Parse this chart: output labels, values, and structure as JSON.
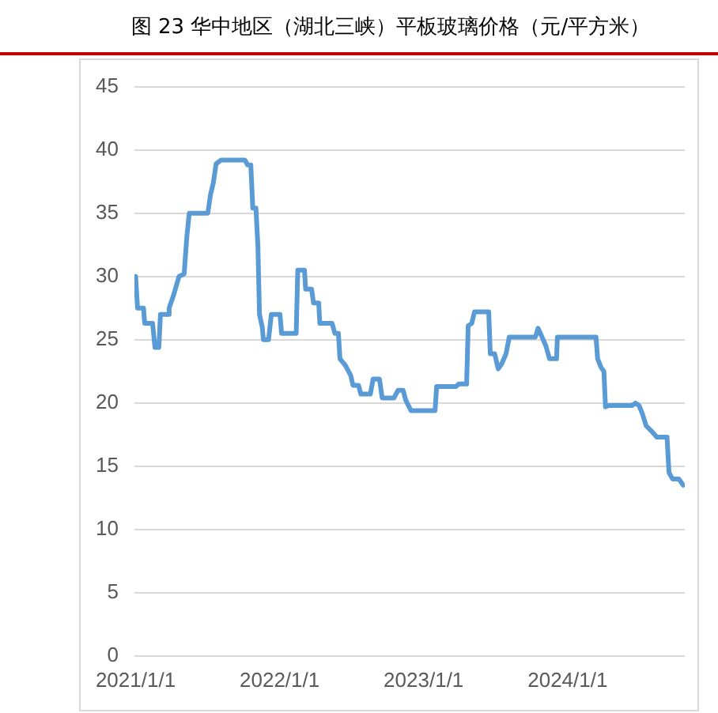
{
  "chart_data": {
    "type": "line",
    "title": "图 23 华中地区（湖北三峡）平板玻璃价格（元/平方米）",
    "x": [
      "2021-01-01",
      "2021-01-06",
      "2021-01-21",
      "2021-01-24",
      "2021-02-13",
      "2021-02-19",
      "2021-03-01",
      "2021-03-05",
      "2021-03-25",
      "2021-03-27",
      "2021-04-07",
      "2021-04-21",
      "2021-05-04",
      "2021-05-11",
      "2021-05-17",
      "2021-07-03",
      "2021-07-10",
      "2021-07-17",
      "2021-07-24",
      "2021-08-06",
      "2021-10-05",
      "2021-10-12",
      "2021-10-20",
      "2021-10-25",
      "2021-11-02",
      "2021-11-07",
      "2021-11-11",
      "2021-11-18",
      "2021-11-21",
      "2021-12-04",
      "2021-12-11",
      "2022-01-02",
      "2022-01-06",
      "2022-02-12",
      "2022-02-16",
      "2022-03-05",
      "2022-03-08",
      "2022-03-23",
      "2022-03-28",
      "2022-04-10",
      "2022-04-13",
      "2022-05-14",
      "2022-05-21",
      "2022-05-30",
      "2022-06-03",
      "2022-06-16",
      "2022-06-30",
      "2022-07-06",
      "2022-07-20",
      "2022-07-26",
      "2022-08-19",
      "2022-08-26",
      "2022-09-11",
      "2022-09-18",
      "2022-10-18",
      "2022-10-28",
      "2022-11-10",
      "2022-11-17",
      "2022-11-30",
      "2023-01-30",
      "2023-02-03",
      "2023-03-24",
      "2023-03-31",
      "2023-04-20",
      "2023-04-24",
      "2023-05-03",
      "2023-05-10",
      "2023-06-15",
      "2023-06-19",
      "2023-06-30",
      "2023-07-09",
      "2023-07-18",
      "2023-07-29",
      "2023-08-06",
      "2023-10-11",
      "2023-10-18",
      "2023-10-24",
      "2023-11-07",
      "2023-11-16",
      "2023-12-04",
      "2023-12-06",
      "2024-03-13",
      "2024-03-17",
      "2024-03-26",
      "2024-04-02",
      "2024-04-06",
      "2024-04-15",
      "2024-06-12",
      "2024-06-21",
      "2024-06-30",
      "2024-07-08",
      "2024-07-18",
      "2024-07-31",
      "2024-08-14",
      "2024-09-09",
      "2024-09-14",
      "2024-09-23",
      "2024-10-09",
      "2024-10-20"
    ],
    "series": [
      {
        "color": "#5b9bd5",
        "values": [
          30.0,
          27.5,
          27.5,
          26.3,
          26.3,
          24.4,
          24.4,
          27.0,
          27.0,
          27.5,
          28.5,
          30.0,
          30.2,
          33.2,
          35.0,
          35.0,
          36.5,
          37.4,
          38.9,
          39.2,
          39.2,
          38.8,
          38.8,
          35.4,
          35.4,
          32.4,
          27.0,
          26.0,
          25.0,
          25.0,
          27.0,
          27.0,
          25.5,
          25.5,
          30.5,
          30.5,
          29.0,
          29.0,
          27.9,
          27.9,
          26.3,
          26.3,
          25.5,
          25.5,
          23.5,
          23.0,
          22.2,
          21.4,
          21.4,
          20.7,
          20.7,
          21.9,
          21.9,
          20.4,
          20.4,
          21.0,
          21.0,
          20.2,
          19.4,
          19.4,
          21.3,
          21.3,
          21.5,
          21.5,
          26.1,
          26.3,
          27.2,
          27.2,
          23.9,
          23.9,
          22.7,
          23.1,
          23.9,
          25.2,
          25.2,
          25.9,
          25.5,
          24.5,
          23.5,
          23.5,
          25.2,
          25.2,
          23.5,
          22.8,
          22.5,
          19.7,
          19.8,
          19.8,
          20.0,
          19.8,
          19.2,
          18.2,
          17.8,
          17.3,
          17.3,
          14.5,
          14.0,
          14.0,
          13.5
        ]
      }
    ],
    "xlim": [
      "2020-12-29",
      "2024-10-24"
    ],
    "xticks": [
      {
        "value": "2021-01-01",
        "label": "2021/1/1"
      },
      {
        "value": "2022-01-01",
        "label": "2022/1/1"
      },
      {
        "value": "2023-01-01",
        "label": "2023/1/1"
      },
      {
        "value": "2024-01-01",
        "label": "2024/1/1"
      }
    ],
    "ylim": [
      0,
      45
    ],
    "yticks": [
      0,
      5,
      10,
      15,
      20,
      25,
      30,
      35,
      40,
      45
    ],
    "grid": "y",
    "marker": "none",
    "line_style": "solid"
  }
}
